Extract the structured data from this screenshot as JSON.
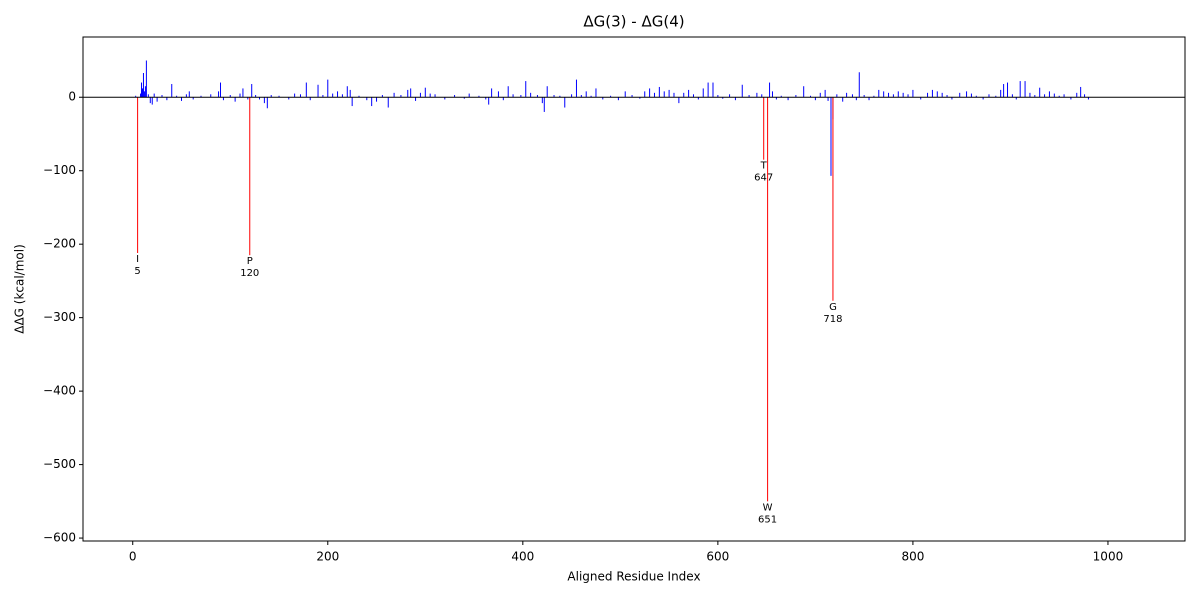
{
  "chart_data": {
    "type": "bar",
    "title": "ΔG(3) - ΔG(4)",
    "xlabel": "Aligned Residue Index",
    "ylabel": "ΔΔG (kcal/mol)",
    "x": [
      3,
      8,
      9,
      10,
      11,
      12,
      13,
      14,
      16,
      18,
      20,
      22,
      25,
      30,
      35,
      40,
      45,
      50,
      55,
      58,
      62,
      70,
      80,
      88,
      90,
      93,
      100,
      105,
      110,
      113,
      118,
      122,
      126,
      130,
      135,
      138,
      142,
      150,
      160,
      166,
      172,
      178,
      182,
      190,
      195,
      200,
      205,
      210,
      215,
      220,
      223,
      225,
      232,
      240,
      245,
      250,
      256,
      262,
      268,
      275,
      282,
      285,
      290,
      295,
      300,
      305,
      310,
      320,
      330,
      340,
      345,
      355,
      362,
      365,
      368,
      375,
      380,
      385,
      390,
      398,
      403,
      408,
      415,
      420,
      422,
      425,
      432,
      438,
      443,
      450,
      455,
      460,
      465,
      470,
      475,
      482,
      490,
      498,
      505,
      512,
      520,
      525,
      530,
      535,
      540,
      545,
      550,
      555,
      560,
      565,
      570,
      575,
      580,
      585,
      590,
      595,
      600,
      605,
      612,
      618,
      625,
      632,
      640,
      645,
      653,
      656,
      660,
      665,
      672,
      680,
      688,
      695,
      700,
      705,
      710,
      713,
      716,
      718,
      722,
      728,
      732,
      738,
      742,
      745,
      750,
      755,
      760,
      765,
      770,
      775,
      780,
      785,
      790,
      795,
      800,
      808,
      815,
      820,
      825,
      830,
      835,
      840,
      848,
      855,
      860,
      865,
      872,
      878,
      885,
      890,
      893,
      897,
      902,
      906,
      910,
      915,
      920,
      925,
      930,
      935,
      940,
      945,
      950,
      955,
      962,
      968,
      972,
      976,
      980
    ],
    "values": [
      2,
      5,
      20,
      12,
      33,
      8,
      15,
      50,
      4,
      -8,
      -10,
      5,
      -6,
      3,
      -4,
      18,
      2,
      -5,
      4,
      8,
      -3,
      2,
      4,
      8,
      20,
      -4,
      3,
      -6,
      5,
      12,
      -3,
      18,
      3,
      -3,
      -8,
      -15,
      3,
      2,
      -3,
      5,
      4,
      20,
      -4,
      17,
      3,
      24,
      5,
      8,
      4,
      15,
      10,
      -12,
      2,
      -4,
      -12,
      -6,
      3,
      -14,
      6,
      3,
      10,
      12,
      -5,
      6,
      13,
      5,
      4,
      -3,
      3,
      -2,
      5,
      2,
      -3,
      -10,
      12,
      8,
      -4,
      15,
      4,
      3,
      22,
      6,
      3,
      -8,
      -20,
      15,
      3,
      2,
      -14,
      4,
      24,
      3,
      8,
      2,
      12,
      -3,
      2,
      -4,
      8,
      3,
      -2,
      8,
      12,
      6,
      14,
      8,
      10,
      6,
      -8,
      6,
      10,
      4,
      -3,
      12,
      20,
      20,
      3,
      -2,
      4,
      -4,
      17,
      3,
      6,
      4,
      20,
      8,
      -3,
      2,
      -4,
      3,
      15,
      2,
      -4,
      6,
      10,
      -5,
      -107,
      -30,
      4,
      -6,
      6,
      4,
      -4,
      34,
      3,
      -4,
      2,
      10,
      8,
      6,
      4,
      8,
      6,
      4,
      10,
      -3,
      6,
      10,
      8,
      6,
      3,
      -3,
      6,
      8,
      5,
      2,
      -3,
      4,
      2,
      10,
      18,
      20,
      4,
      -3,
      22,
      22,
      6,
      3,
      13,
      4,
      8,
      5,
      2,
      4,
      -3,
      6,
      14,
      4,
      -3
    ],
    "color": "blue",
    "highlight": {
      "x": [
        5,
        120,
        647,
        651,
        718
      ],
      "values": [
        -212,
        -215,
        -85,
        -550,
        -277
      ],
      "labels": [
        "I",
        "P",
        "T",
        "W",
        "G"
      ],
      "color": "red"
    },
    "hline": 0,
    "xlim": [
      -51,
      1079
    ],
    "ylim": [
      -604,
      82
    ],
    "xticks": [
      0,
      200,
      400,
      600,
      800,
      1000
    ],
    "yticks": [
      {
        "value": -600,
        "label": "−600"
      },
      {
        "value": -500,
        "label": "−500"
      },
      {
        "value": -400,
        "label": "−400"
      },
      {
        "value": -300,
        "label": "−300"
      },
      {
        "value": -200,
        "label": "−200"
      },
      {
        "value": -100,
        "label": "−100"
      },
      0
    ]
  }
}
